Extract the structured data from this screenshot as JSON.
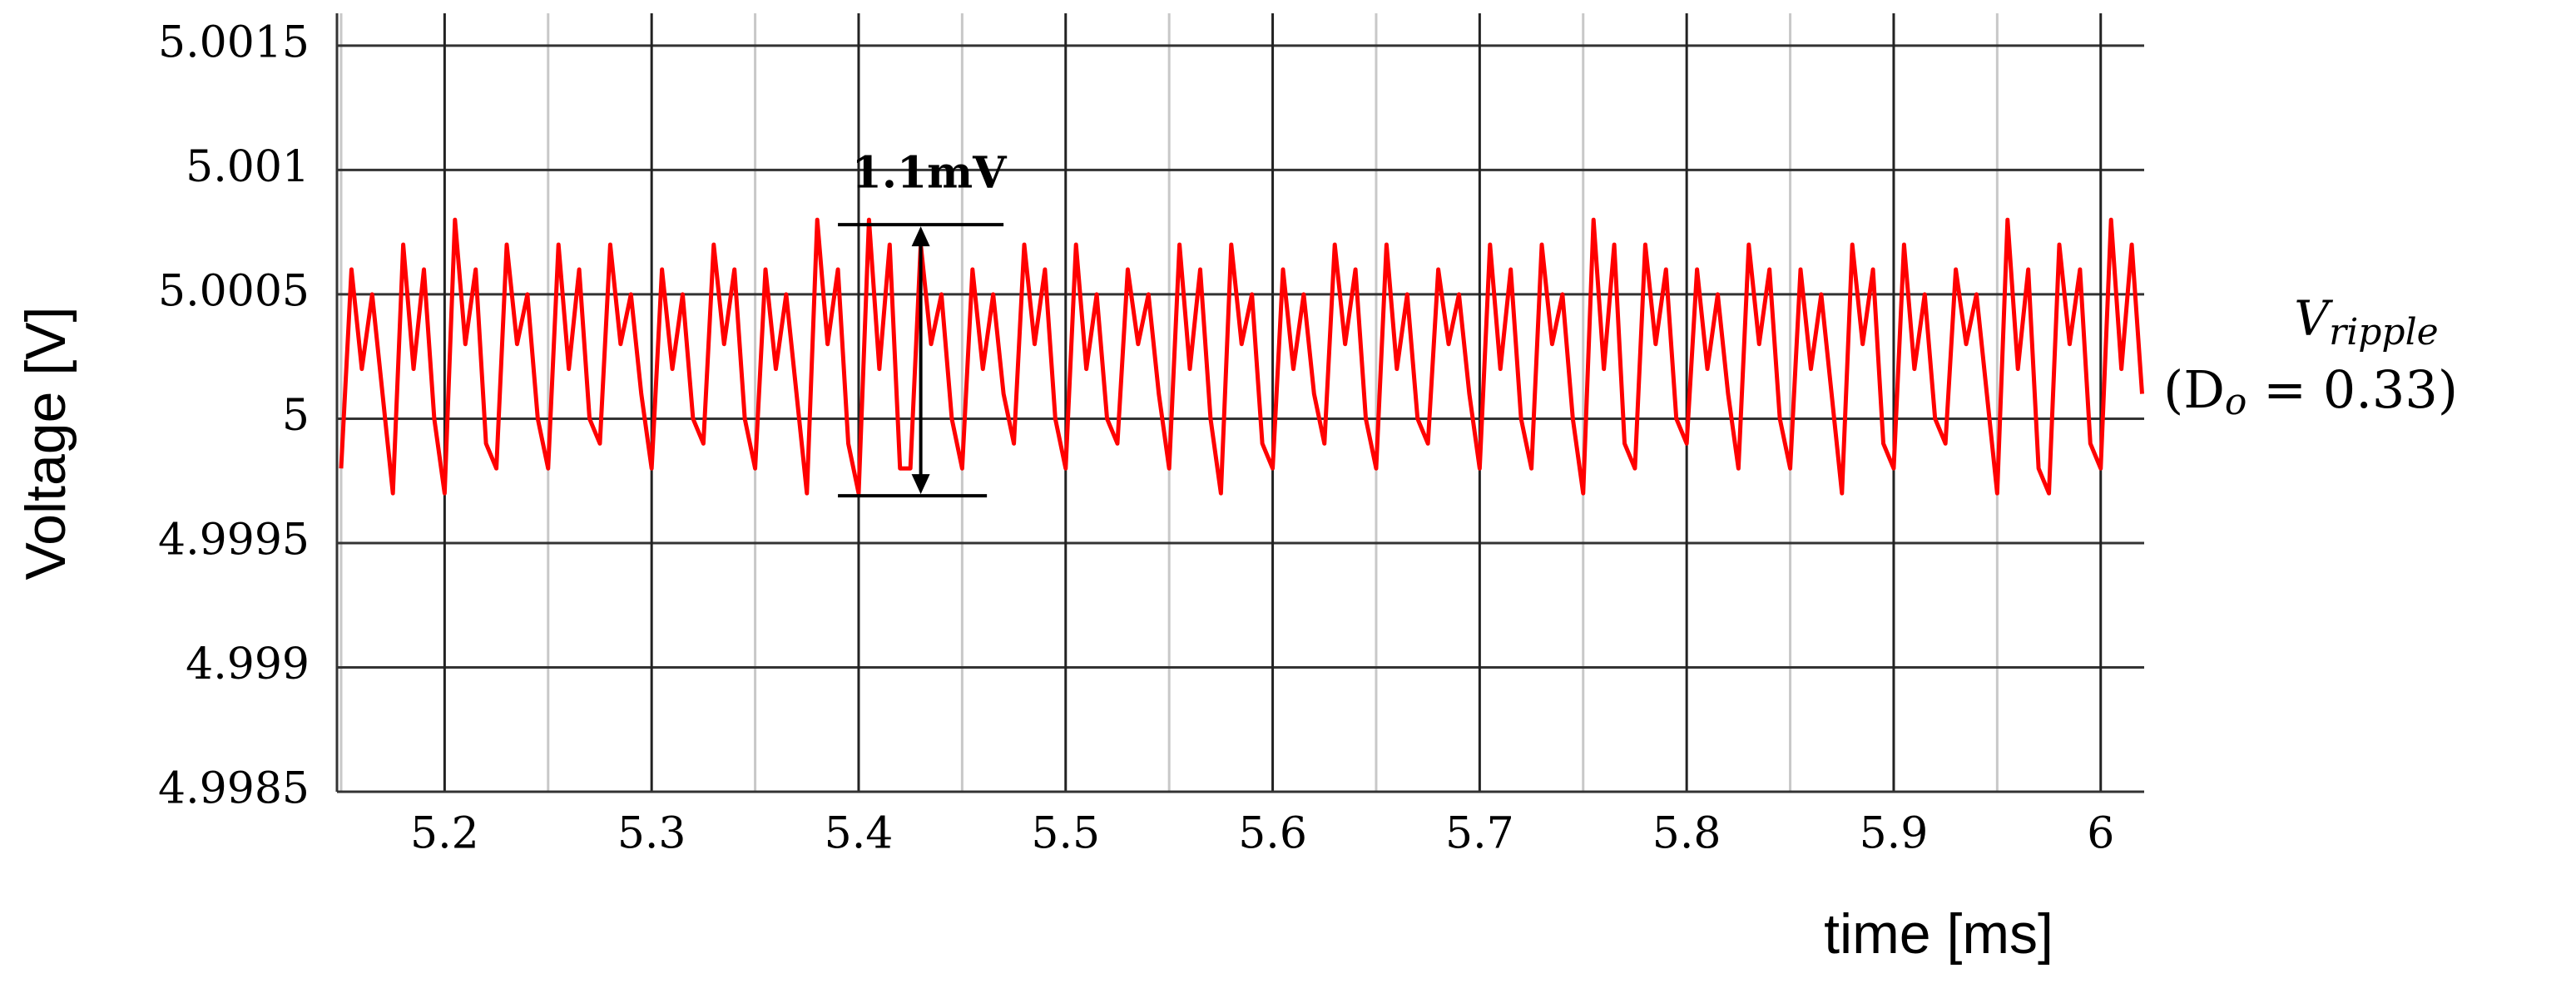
{
  "chart_data": {
    "type": "line",
    "xlabel": "time [ms]",
    "ylabel": "Voltage [V]",
    "xlim": [
      5.148,
      6.021
    ],
    "ylim": [
      4.9985,
      5.00163
    ],
    "xticks": [
      5.2,
      5.3,
      5.4,
      5.5,
      5.6,
      5.7,
      5.8,
      5.9,
      6
    ],
    "xminorticks": [
      5.15,
      5.25,
      5.35,
      5.45,
      5.55,
      5.65,
      5.75,
      5.85,
      5.95
    ],
    "yticks": [
      5.0015,
      5.001,
      5.0005,
      5,
      4.9995,
      4.999,
      4.9985
    ],
    "grid": true,
    "annotation": {
      "text": "1.1mV",
      "x": 5.43,
      "from": 4.99969,
      "to": 5.00078,
      "left": 5.39,
      "right": 5.47
    },
    "side_label": {
      "main": "V",
      "sub": "ripple",
      "open": "(D",
      "sub2": "o",
      "rest": " = 0.33)"
    },
    "x": [
      5.15,
      5.155,
      5.16,
      5.165,
      5.17,
      5.175,
      5.18,
      5.185,
      5.19,
      5.195,
      5.2,
      5.205,
      5.21,
      5.215,
      5.22,
      5.225,
      5.23,
      5.235,
      5.24,
      5.245,
      5.25,
      5.255,
      5.26,
      5.265,
      5.27,
      5.275,
      5.28,
      5.285,
      5.29,
      5.295,
      5.3,
      5.305,
      5.31,
      5.315,
      5.32,
      5.325,
      5.33,
      5.335,
      5.34,
      5.345,
      5.35,
      5.355,
      5.36,
      5.365,
      5.37,
      5.375,
      5.38,
      5.385,
      5.39,
      5.395,
      5.4,
      5.405,
      5.41,
      5.415,
      5.42,
      5.425,
      5.43,
      5.435,
      5.44,
      5.445,
      5.45,
      5.455,
      5.46,
      5.465,
      5.47,
      5.475,
      5.48,
      5.485,
      5.49,
      5.495,
      5.5,
      5.505,
      5.51,
      5.515,
      5.52,
      5.525,
      5.53,
      5.535,
      5.54,
      5.545,
      5.55,
      5.555,
      5.56,
      5.565,
      5.57,
      5.575,
      5.58,
      5.585,
      5.59,
      5.595,
      5.6,
      5.605,
      5.61,
      5.615,
      5.62,
      5.625,
      5.63,
      5.635,
      5.64,
      5.645,
      5.65,
      5.655,
      5.66,
      5.665,
      5.67,
      5.675,
      5.68,
      5.685,
      5.69,
      5.695,
      5.7,
      5.705,
      5.71,
      5.715,
      5.72,
      5.725,
      5.73,
      5.735,
      5.74,
      5.745,
      5.75,
      5.755,
      5.76,
      5.765,
      5.77,
      5.775,
      5.78,
      5.785,
      5.79,
      5.795,
      5.8,
      5.805,
      5.81,
      5.815,
      5.82,
      5.825,
      5.83,
      5.835,
      5.84,
      5.845,
      5.85,
      5.855,
      5.86,
      5.865,
      5.87,
      5.875,
      5.88,
      5.885,
      5.89,
      5.895,
      5.9,
      5.905,
      5.91,
      5.915,
      5.92,
      5.925,
      5.93,
      5.935,
      5.94,
      5.945,
      5.95,
      5.955,
      5.96,
      5.965,
      5.97,
      5.975,
      5.98,
      5.985,
      5.99,
      5.995,
      6.0,
      6.005,
      6.01,
      6.015,
      6.02
    ],
    "series": [
      {
        "name": "Vripple",
        "color": "#ff0000",
        "values": [
          4.9998,
          5.0006,
          5.0002,
          5.0005,
          5.0001,
          4.9997,
          5.0007,
          5.0002,
          5.0006,
          5.0,
          4.9997,
          5.0008,
          5.0003,
          5.0006,
          4.9999,
          4.9998,
          5.0007,
          5.0003,
          5.0005,
          5.0,
          4.9998,
          5.0007,
          5.0002,
          5.0006,
          5.0,
          4.9999,
          5.0007,
          5.0003,
          5.0005,
          5.0001,
          4.9998,
          5.0006,
          5.0002,
          5.0005,
          5.0,
          4.9999,
          5.0007,
          5.0003,
          5.0006,
          5.0,
          4.9998,
          5.0006,
          5.0002,
          5.0005,
          5.0001,
          4.9997,
          5.0008,
          5.0003,
          5.0006,
          4.9999,
          4.9997,
          5.0008,
          5.0002,
          5.0007,
          4.9998,
          4.9998,
          5.0007,
          5.0003,
          5.0005,
          5.0,
          4.9998,
          5.0006,
          5.0002,
          5.0005,
          5.0001,
          4.9999,
          5.0007,
          5.0003,
          5.0006,
          5.0,
          4.9998,
          5.0007,
          5.0002,
          5.0005,
          5.0,
          4.9999,
          5.0006,
          5.0003,
          5.0005,
          5.0001,
          4.9998,
          5.0007,
          5.0002,
          5.0006,
          5.0,
          4.9997,
          5.0007,
          5.0003,
          5.0005,
          4.9999,
          4.9998,
          5.0006,
          5.0002,
          5.0005,
          5.0001,
          4.9999,
          5.0007,
          5.0003,
          5.0006,
          5.0,
          4.9998,
          5.0007,
          5.0002,
          5.0005,
          5.0,
          4.9999,
          5.0006,
          5.0003,
          5.0005,
          5.0001,
          4.9998,
          5.0007,
          5.0002,
          5.0006,
          5.0,
          4.9998,
          5.0007,
          5.0003,
          5.0005,
          5.0,
          4.9997,
          5.0008,
          5.0002,
          5.0007,
          4.9999,
          4.9998,
          5.0007,
          5.0003,
          5.0006,
          5.0,
          4.9999,
          5.0006,
          5.0002,
          5.0005,
          5.0001,
          4.9998,
          5.0007,
          5.0003,
          5.0006,
          5.0,
          4.9998,
          5.0006,
          5.0002,
          5.0005,
          5.0001,
          4.9997,
          5.0007,
          5.0003,
          5.0006,
          4.9999,
          4.9998,
          5.0007,
          5.0002,
          5.0005,
          5.0,
          4.9999,
          5.0006,
          5.0003,
          5.0005,
          5.0001,
          4.9997,
          5.0008,
          5.0002,
          5.0006,
          4.9998,
          4.9997,
          5.0007,
          5.0003,
          5.0006,
          4.9999,
          4.9998,
          5.0008,
          5.0002,
          5.0007,
          5.0001
        ]
      }
    ]
  }
}
